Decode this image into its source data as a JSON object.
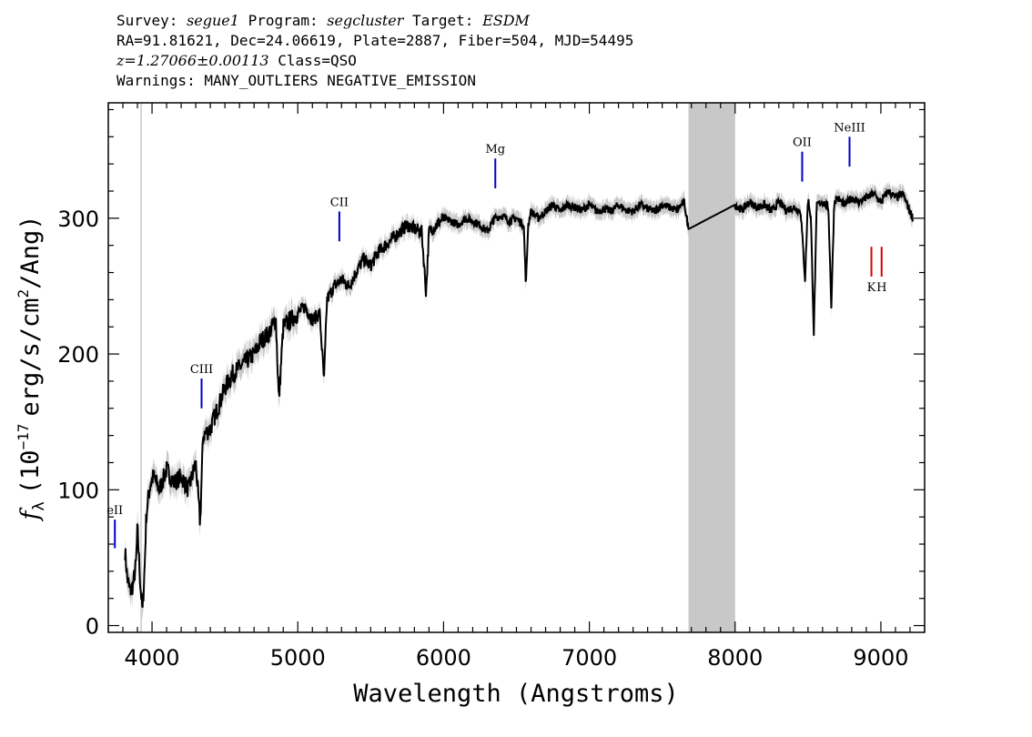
{
  "header": {
    "line1": {
      "survey_label": "Survey:",
      "survey": "segue1",
      "program_label": "Program:",
      "program": "segcluster",
      "target_label": "Target:",
      "target": "ESDM"
    },
    "line2": "RA=91.81621, Dec=24.06619, Plate=2887, Fiber=504, MJD=54495",
    "line3": {
      "z": "z=1.27066±0.00113",
      "class": "Class=QSO"
    },
    "line4": "Warnings: MANY_OUTLIERS NEGATIVE_EMISSION"
  },
  "chart_data": {
    "type": "line",
    "title": "",
    "xlabel": "Wavelength (Angstroms)",
    "ylabel_parts": {
      "f": "f",
      "sub": "λ",
      "open": "(10",
      "exp1": "−17",
      "mid": "erg/s/cm",
      "exp2": "2",
      "close": "/Ang)"
    },
    "xlim": [
      3700,
      9300
    ],
    "ylim": [
      -5,
      385
    ],
    "x_ticks": [
      4000,
      5000,
      6000,
      7000,
      8000,
      9000
    ],
    "x_tick_labels": [
      "4000",
      "5000",
      "6000",
      "7000",
      "8000",
      "9000"
    ],
    "y_ticks": [
      0,
      100,
      200,
      300
    ],
    "y_tick_labels": [
      "0",
      "100",
      "200",
      "300"
    ],
    "grid": false,
    "masked_region": [
      7680,
      8000
    ],
    "vertical_marker_x": 3925,
    "spectrum": {
      "x": [
        3815,
        3830,
        3850,
        3870,
        3890,
        3900,
        3920,
        3935,
        3950,
        3960,
        3975,
        3990,
        4010,
        4050,
        4100,
        4150,
        4200,
        4250,
        4300,
        4330,
        4350,
        4400,
        4450,
        4500,
        4550,
        4600,
        4650,
        4700,
        4750,
        4800,
        4850,
        4870,
        4900,
        4950,
        5000,
        5050,
        5100,
        5150,
        5180,
        5200,
        5250,
        5300,
        5350,
        5400,
        5450,
        5500,
        5550,
        5600,
        5650,
        5700,
        5750,
        5800,
        5850,
        5880,
        5900,
        5950,
        6000,
        6050,
        6100,
        6150,
        6200,
        6250,
        6300,
        6350,
        6400,
        6450,
        6500,
        6550,
        6565,
        6580,
        6600,
        6650,
        6700,
        6750,
        6800,
        6850,
        6900,
        6950,
        7000,
        7050,
        7100,
        7150,
        7200,
        7250,
        7300,
        7350,
        7400,
        7450,
        7500,
        7550,
        7600,
        7650,
        7680,
        8000,
        8050,
        8100,
        8150,
        8200,
        8250,
        8300,
        8350,
        8400,
        8450,
        8480,
        8500,
        8520,
        8540,
        8560,
        8600,
        8640,
        8660,
        8680,
        8700,
        8750,
        8800,
        8850,
        8900,
        8950,
        9000,
        9050,
        9100,
        9150,
        9200,
        9220
      ],
      "y": [
        55,
        35,
        25,
        30,
        45,
        72,
        30,
        10,
        45,
        80,
        95,
        105,
        110,
        100,
        115,
        105,
        110,
        100,
        120,
        75,
        140,
        145,
        160,
        175,
        185,
        190,
        195,
        200,
        210,
        215,
        225,
        165,
        220,
        225,
        230,
        235,
        225,
        230,
        180,
        240,
        250,
        255,
        250,
        260,
        270,
        265,
        275,
        280,
        285,
        290,
        295,
        292,
        290,
        245,
        290,
        295,
        300,
        298,
        295,
        300,
        298,
        295,
        290,
        300,
        302,
        298,
        300,
        295,
        250,
        295,
        305,
        300,
        305,
        310,
        305,
        310,
        308,
        306,
        310,
        305,
        307,
        305,
        310,
        306,
        305,
        310,
        307,
        305,
        310,
        308,
        306,
        312,
        292,
        310,
        306,
        312,
        308,
        310,
        305,
        312,
        306,
        308,
        305,
        255,
        315,
        300,
        215,
        310,
        312,
        308,
        235,
        312,
        315,
        310,
        315,
        312,
        315,
        318,
        312,
        320,
        315,
        318,
        305,
        300
      ]
    },
    "line_labels": [
      {
        "label": "eII",
        "x": 3745,
        "y_bottom": 57,
        "y_top": 78,
        "color": "#0000c8"
      },
      {
        "label": "CIII",
        "x": 4340,
        "y_bottom": 160,
        "y_top": 182,
        "color": "#0000c8"
      },
      {
        "label": "CII",
        "x": 5285,
        "y_bottom": 283,
        "y_top": 305,
        "color": "#0000c8"
      },
      {
        "label": "Mg",
        "x": 6355,
        "y_bottom": 322,
        "y_top": 344,
        "color": "#0000c8"
      },
      {
        "label": "OII",
        "x": 8460,
        "y_bottom": 327,
        "y_top": 349,
        "color": "#0000c8"
      },
      {
        "label": "NeIII",
        "x": 8785,
        "y_bottom": 338,
        "y_top": 360,
        "color": "#0000c8"
      },
      {
        "label": "K",
        "x": 8935,
        "y_bottom": 257,
        "y_top": 279,
        "color": "#dd0000",
        "label_below": true
      },
      {
        "label": "H",
        "x": 9005,
        "y_bottom": 257,
        "y_top": 279,
        "color": "#dd0000",
        "label_below": true
      }
    ],
    "colors": {
      "spectrum": "#000000",
      "error_band": "#c8c8c8",
      "mask": "#c8c8c8",
      "marker": "#c8c8c8"
    }
  }
}
